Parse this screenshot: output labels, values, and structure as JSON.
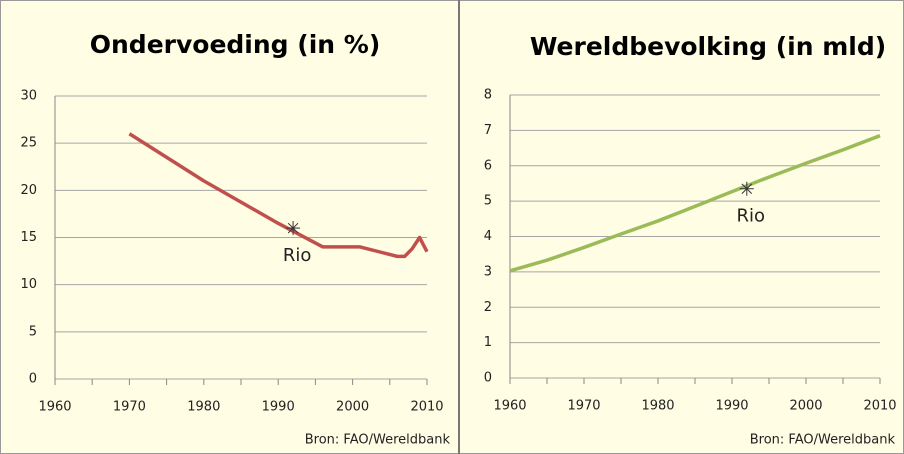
{
  "chart_data": [
    {
      "type": "line",
      "title": "Ondervoeding (in %)",
      "x": [
        1970,
        1980,
        1990,
        1996,
        2001,
        2006,
        2007,
        2008,
        2009,
        2010
      ],
      "values": [
        26,
        21,
        16.5,
        14,
        14,
        13,
        13,
        13.8,
        15,
        13.5
      ],
      "color": "#c0504d",
      "xlim": [
        1960,
        2010
      ],
      "xticks": [
        1960,
        1970,
        1980,
        1990,
        2000,
        2010
      ],
      "ylim": [
        0,
        30
      ],
      "yticks": [
        0,
        5,
        10,
        15,
        20,
        25,
        30
      ],
      "grid": true,
      "annotations": [
        {
          "text": "Rio",
          "x": 1992,
          "y": 16
        }
      ],
      "source": "Bron: FAO/Wereldbank"
    },
    {
      "type": "line",
      "title": "Wereldbevolking (in mld)",
      "x": [
        1960,
        1965,
        1970,
        1975,
        1980,
        1985,
        1990,
        1995,
        2000,
        2005,
        2010
      ],
      "values": [
        3.03,
        3.33,
        3.69,
        4.07,
        4.44,
        4.85,
        5.27,
        5.68,
        6.07,
        6.45,
        6.85
      ],
      "color": "#9bbb59",
      "xlim": [
        1960,
        2010
      ],
      "xticks": [
        1960,
        1970,
        1980,
        1990,
        2000,
        2010
      ],
      "ylim": [
        0,
        8
      ],
      "yticks": [
        0,
        1,
        2,
        3,
        4,
        5,
        6,
        7,
        8
      ],
      "grid": true,
      "annotations": [
        {
          "text": "Rio",
          "x": 1992,
          "y": 5.35
        }
      ],
      "source": "Bron: FAO/Wereldbank"
    }
  ]
}
